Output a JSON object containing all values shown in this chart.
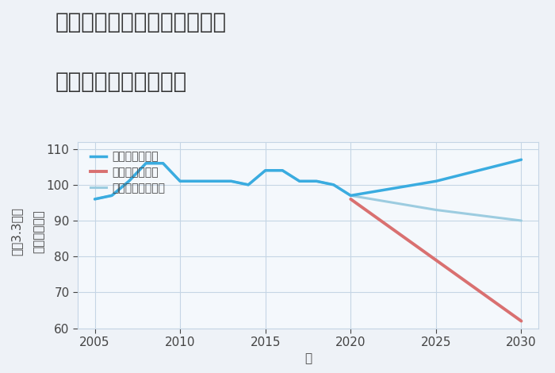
{
  "title_line1": "兵庫県姫路市五郎右衛門邸の",
  "title_line2": "中古戸建ての価格推移",
  "xlabel": "年",
  "ylabel_top": "坪（3.3㎡）",
  "ylabel_bot": "単価（万円）",
  "xlim": [
    2004,
    2031
  ],
  "ylim": [
    60,
    112
  ],
  "yticks": [
    60,
    70,
    80,
    90,
    100,
    110
  ],
  "xticks": [
    2005,
    2010,
    2015,
    2020,
    2025,
    2030
  ],
  "background_color": "#eef2f7",
  "plot_background": "#f4f8fc",
  "grid_color": "#c5d5e5",
  "good_scenario": {
    "label": "グッドシナリオ",
    "color": "#3aace0",
    "linewidth": 2.5,
    "x": [
      2005,
      2006,
      2007,
      2008,
      2009,
      2010,
      2011,
      2012,
      2013,
      2014,
      2015,
      2016,
      2017,
      2018,
      2019,
      2020,
      2025,
      2030
    ],
    "y": [
      96,
      97,
      101,
      106,
      106,
      101,
      101,
      101,
      101,
      100,
      104,
      104,
      101,
      101,
      100,
      97,
      101,
      107
    ]
  },
  "bad_scenario": {
    "label": "バッドシナリオ",
    "color": "#d97070",
    "linewidth": 2.8,
    "x": [
      2020,
      2030
    ],
    "y": [
      96,
      62
    ]
  },
  "normal_scenario": {
    "label": "ノーマルシナリオ",
    "color": "#9ccce0",
    "linewidth": 2.2,
    "x": [
      2005,
      2006,
      2007,
      2008,
      2009,
      2010,
      2011,
      2012,
      2013,
      2014,
      2015,
      2016,
      2017,
      2018,
      2019,
      2020,
      2025,
      2030
    ],
    "y": [
      96,
      97,
      101,
      106,
      106,
      101,
      101,
      101,
      101,
      100,
      104,
      104,
      101,
      101,
      100,
      97,
      93,
      90
    ]
  },
  "title_fontsize": 20,
  "tick_fontsize": 11,
  "label_fontsize": 11,
  "legend_fontsize": 10
}
